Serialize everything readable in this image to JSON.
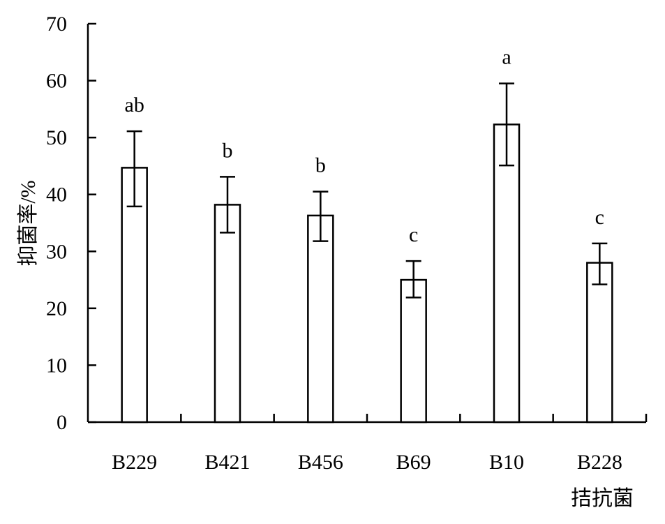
{
  "chart_data": {
    "type": "bar",
    "title": "",
    "xlabel": "拮抗菌",
    "ylabel": "抑菌率/%",
    "categories": [
      "B229",
      "B421",
      "B456",
      "B69",
      "B10",
      "B228"
    ],
    "values": [
      44.7,
      38.2,
      36.3,
      25.0,
      52.3,
      28.0
    ],
    "error_low": [
      37.9,
      33.3,
      31.8,
      21.9,
      45.1,
      24.2
    ],
    "error_high": [
      51.1,
      43.1,
      40.5,
      28.3,
      59.5,
      31.4
    ],
    "significance": [
      "ab",
      "b",
      "b",
      "c",
      "a",
      "c"
    ],
    "ylim": [
      0,
      70
    ],
    "yticks": [
      0,
      10,
      20,
      30,
      40,
      50,
      60,
      70
    ],
    "ytick_labels": [
      "0",
      "10",
      "20",
      "30",
      "40",
      "50",
      "60",
      "70"
    ],
    "grid": false,
    "bar_fill": "#ffffff",
    "stroke_color": "#000000"
  }
}
